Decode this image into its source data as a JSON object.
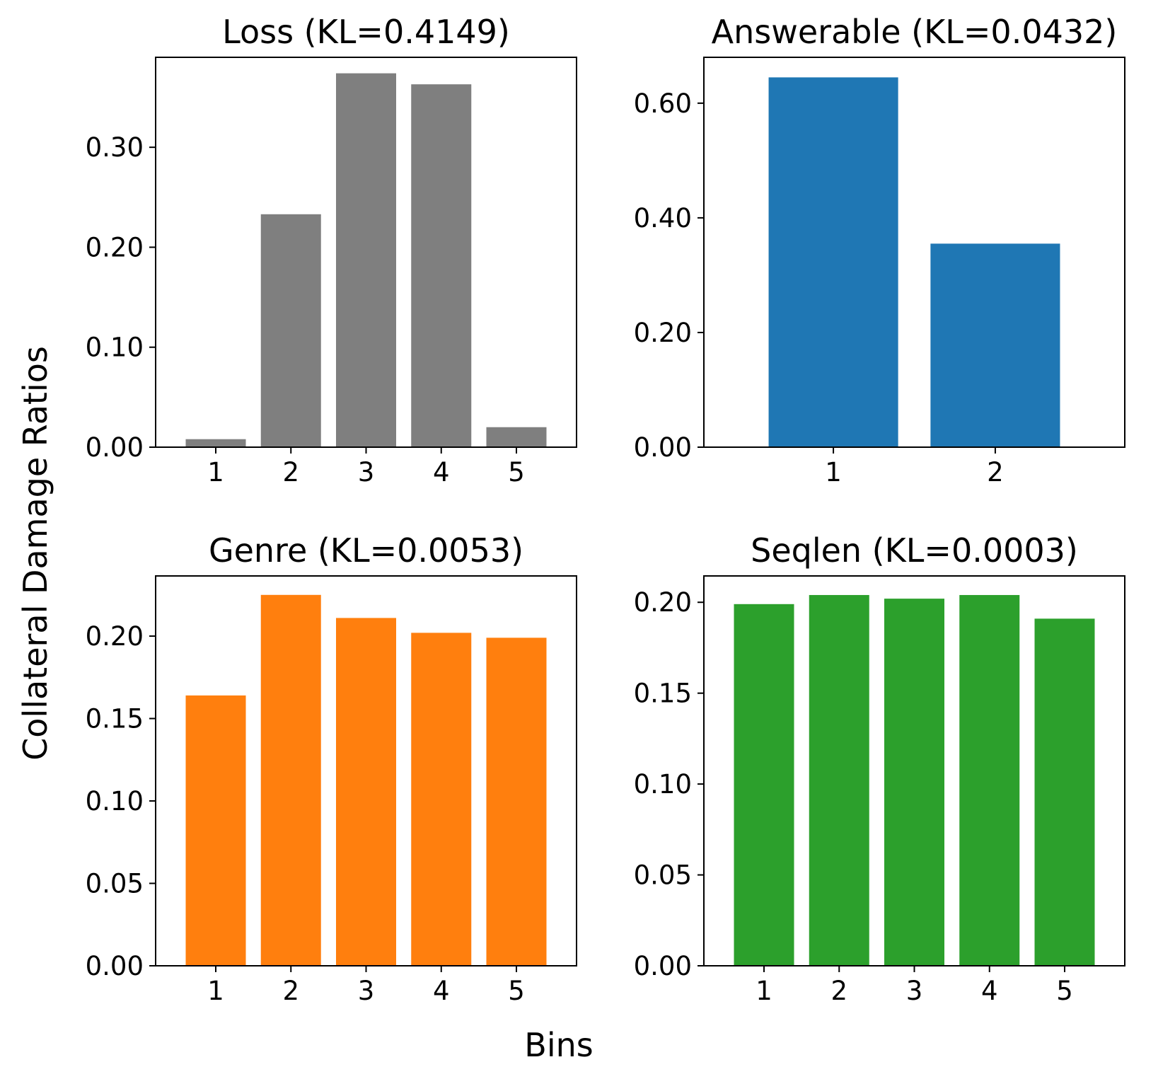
{
  "figure": {
    "xlabel": "Bins",
    "ylabel": "Collateral Damage Ratios"
  },
  "chart_data": [
    {
      "type": "bar",
      "title": "Loss (KL=0.4149)",
      "categories": [
        "1",
        "2",
        "3",
        "4",
        "5"
      ],
      "values": [
        0.008,
        0.233,
        0.374,
        0.363,
        0.02
      ],
      "color": "#7f7f7f",
      "ylim": [
        0,
        0.39
      ],
      "yticks": [
        0.0,
        0.1,
        0.2,
        0.3
      ],
      "ytick_labels": [
        "0.00",
        "0.10",
        "0.20",
        "0.30"
      ]
    },
    {
      "type": "bar",
      "title": "Answerable (KL=0.0432)",
      "categories": [
        "1",
        "2"
      ],
      "values": [
        0.645,
        0.355
      ],
      "color": "#1f77b4",
      "ylim": [
        0,
        0.68
      ],
      "yticks": [
        0.0,
        0.2,
        0.4,
        0.6
      ],
      "ytick_labels": [
        "0.00",
        "0.20",
        "0.40",
        "0.60"
      ]
    },
    {
      "type": "bar",
      "title": "Genre (KL=0.0053)",
      "categories": [
        "1",
        "2",
        "3",
        "4",
        "5"
      ],
      "values": [
        0.164,
        0.225,
        0.211,
        0.202,
        0.199
      ],
      "color": "#ff7f0e",
      "ylim": [
        0,
        0.2365
      ],
      "yticks": [
        0.0,
        0.05,
        0.1,
        0.15,
        0.2
      ],
      "ytick_labels": [
        "0.00",
        "0.05",
        "0.10",
        "0.15",
        "0.20"
      ]
    },
    {
      "type": "bar",
      "title": "Seqlen (KL=0.0003)",
      "categories": [
        "1",
        "2",
        "3",
        "4",
        "5"
      ],
      "values": [
        0.199,
        0.204,
        0.202,
        0.204,
        0.191
      ],
      "color": "#2ca02c",
      "ylim": [
        0,
        0.2145
      ],
      "yticks": [
        0.0,
        0.05,
        0.1,
        0.15,
        0.2
      ],
      "ytick_labels": [
        "0.00",
        "0.05",
        "0.10",
        "0.15",
        "0.20"
      ]
    }
  ]
}
